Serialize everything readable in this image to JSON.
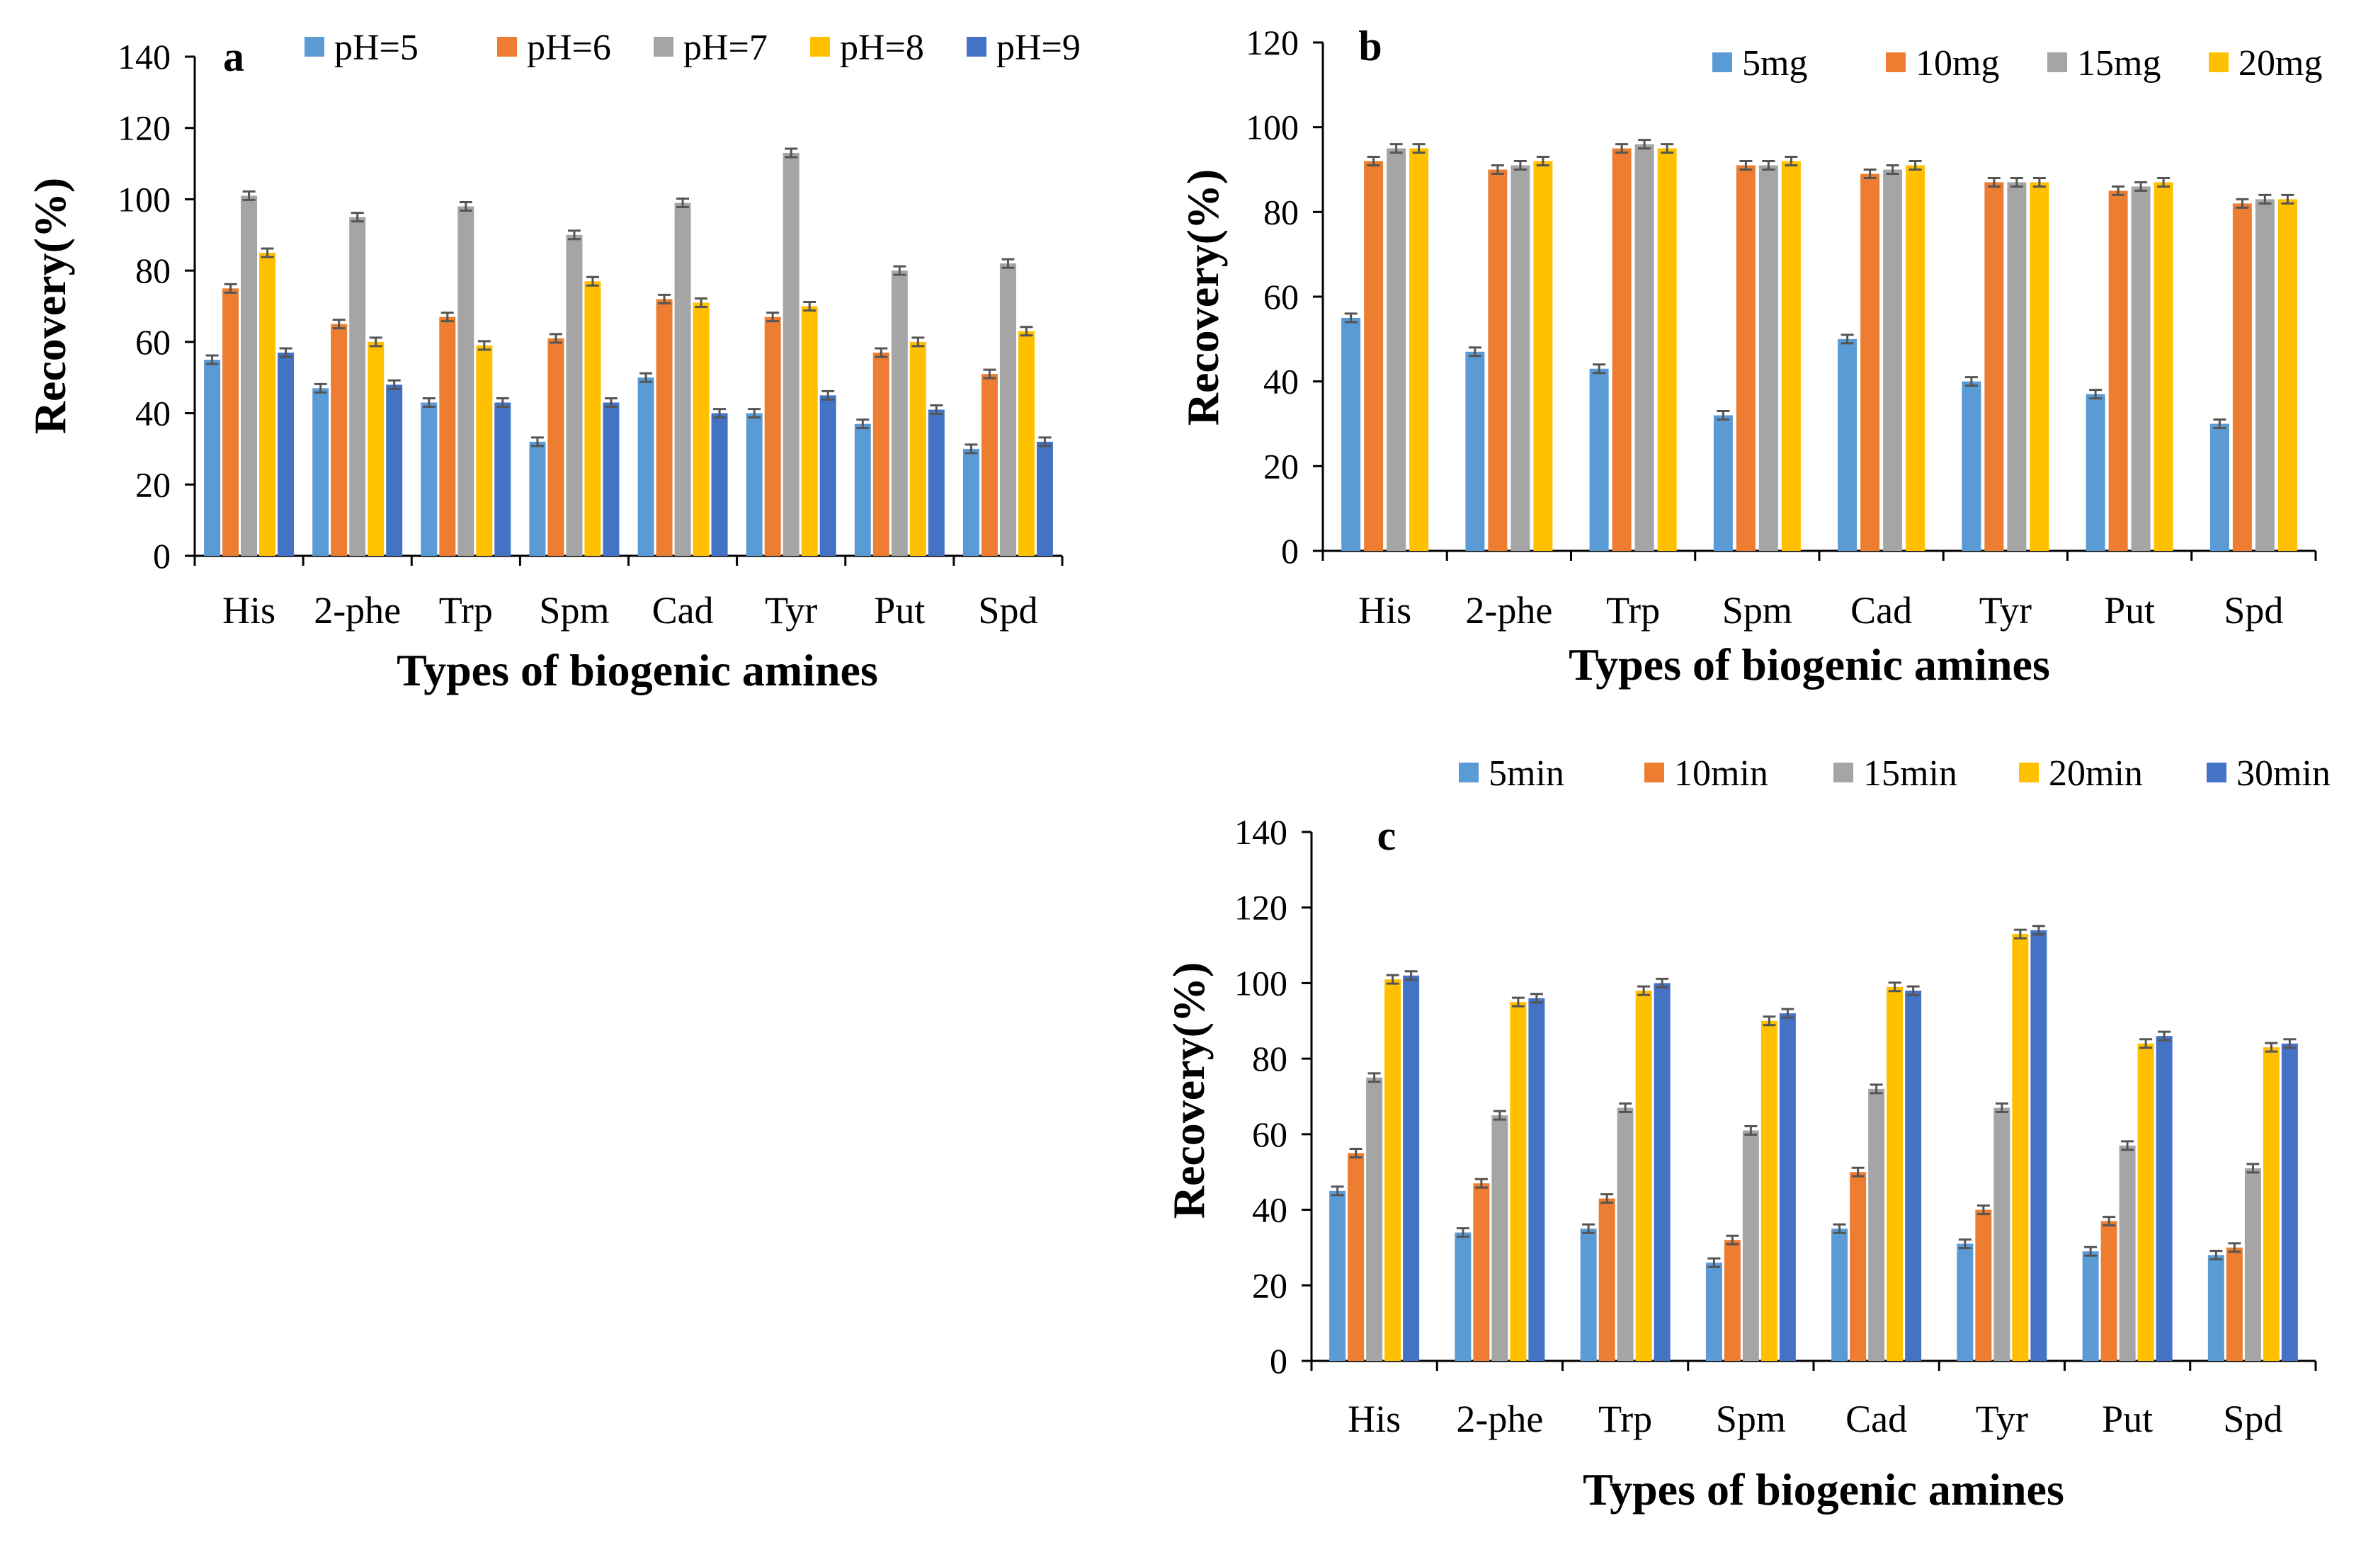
{
  "chart_data": [
    {
      "type": "bar",
      "panel": "a",
      "categories": [
        "His",
        "2-phe",
        "Trp",
        "Spm",
        "Cad",
        "Tyr",
        "Put",
        "Spd"
      ],
      "series": [
        {
          "name": "pH=5",
          "color": "#5B9BD5",
          "values": [
            55,
            47,
            43,
            32,
            50,
            40,
            37,
            30
          ]
        },
        {
          "name": "pH=6",
          "color": "#ED7D31",
          "values": [
            75,
            65,
            67,
            61,
            72,
            67,
            57,
            51
          ]
        },
        {
          "name": "pH=7",
          "color": "#A5A5A5",
          "values": [
            101,
            95,
            98,
            90,
            99,
            113,
            80,
            82
          ]
        },
        {
          "name": "pH=8",
          "color": "#FFC000",
          "values": [
            85,
            60,
            59,
            77,
            71,
            70,
            60,
            63
          ]
        },
        {
          "name": "pH=9",
          "color": "#4472C4",
          "values": [
            57,
            48,
            43,
            43,
            40,
            45,
            41,
            32
          ]
        }
      ],
      "xlabel": "Types of biogenic amines",
      "ylabel": "Recovery(%)",
      "ylim": [
        0,
        140
      ],
      "yticks": [
        0,
        20,
        40,
        60,
        80,
        100,
        120,
        140
      ],
      "legend_position": "top"
    },
    {
      "type": "bar",
      "panel": "b",
      "categories": [
        "His",
        "2-phe",
        "Trp",
        "Spm",
        "Cad",
        "Tyr",
        "Put",
        "Spd"
      ],
      "series": [
        {
          "name": "5mg",
          "color": "#5B9BD5",
          "values": [
            55,
            47,
            43,
            32,
            50,
            40,
            37,
            30
          ]
        },
        {
          "name": "10mg",
          "color": "#ED7D31",
          "values": [
            92,
            90,
            95,
            91,
            89,
            87,
            85,
            82
          ]
        },
        {
          "name": "15mg",
          "color": "#A5A5A5",
          "values": [
            95,
            91,
            96,
            91,
            90,
            87,
            86,
            83
          ]
        },
        {
          "name": "20mg",
          "color": "#FFC000",
          "values": [
            95,
            92,
            95,
            92,
            91,
            87,
            87,
            83
          ]
        }
      ],
      "xlabel": "Types of biogenic amines",
      "ylabel": "Recovery(%)",
      "ylim": [
        0,
        120
      ],
      "yticks": [
        0,
        20,
        40,
        60,
        80,
        100,
        120
      ],
      "legend_position": "top-right"
    },
    {
      "type": "bar",
      "panel": "c",
      "categories": [
        "His",
        "2-phe",
        "Trp",
        "Spm",
        "Cad",
        "Tyr",
        "Put",
        "Spd"
      ],
      "series": [
        {
          "name": "5min",
          "color": "#5B9BD5",
          "values": [
            45,
            34,
            35,
            26,
            35,
            31,
            29,
            28
          ]
        },
        {
          "name": "10min",
          "color": "#ED7D31",
          "values": [
            55,
            47,
            43,
            32,
            50,
            40,
            37,
            30
          ]
        },
        {
          "name": "15min",
          "color": "#A5A5A5",
          "values": [
            75,
            65,
            67,
            61,
            72,
            67,
            57,
            51
          ]
        },
        {
          "name": "20min",
          "color": "#FFC000",
          "values": [
            101,
            95,
            98,
            90,
            99,
            113,
            84,
            83
          ]
        },
        {
          "name": "30min",
          "color": "#4472C4",
          "values": [
            102,
            96,
            100,
            92,
            98,
            114,
            86,
            84
          ]
        }
      ],
      "xlabel": "Types of biogenic amines",
      "ylabel": "Recovery(%)",
      "ylim": [
        0,
        140
      ],
      "yticks": [
        0,
        20,
        40,
        60,
        80,
        100,
        120,
        140
      ],
      "legend_position": "top"
    }
  ]
}
